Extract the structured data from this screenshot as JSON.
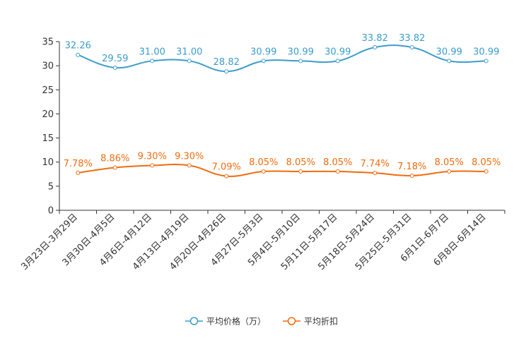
{
  "chart_data": {
    "type": "line",
    "title": "",
    "xlabel": "",
    "ylabel": "",
    "ylim": [
      0,
      35
    ],
    "yticks": [
      0,
      5,
      10,
      15,
      20,
      25,
      30,
      35
    ],
    "grid": false,
    "legend_position": "bottom",
    "categories": [
      "3月23日-3月29日",
      "3月30日-4月5日",
      "4月6日-4月12日",
      "4月13日-4月19日",
      "4月20日-4月26日",
      "4月27日-5月3日",
      "5月4日-5月10日",
      "5月11日-5月17日",
      "5月18日-5月24日",
      "5月25日-5月31日",
      "6月1日-6月7日",
      "6月8日-6月14日"
    ],
    "series": [
      {
        "name": "平均价格（万）",
        "color": "#3b9ccc",
        "values": [
          32.26,
          29.59,
          31.0,
          31.0,
          28.82,
          30.99,
          30.99,
          30.99,
          33.82,
          33.82,
          30.99,
          30.99
        ],
        "labels": [
          "32.26",
          "29.59",
          "31.00",
          "31.00",
          "28.82",
          "30.99",
          "30.99",
          "30.99",
          "33.82",
          "33.82",
          "30.99",
          "30.99"
        ]
      },
      {
        "name": "平均折扣",
        "color": "#f06c0f",
        "values": [
          7.78,
          8.86,
          9.3,
          9.3,
          7.09,
          8.05,
          8.05,
          8.05,
          7.74,
          7.18,
          8.05,
          8.05
        ],
        "labels": [
          "7.78%",
          "8.86%",
          "9.30%",
          "9.30%",
          "7.09%",
          "8.05%",
          "8.05%",
          "8.05%",
          "7.74%",
          "7.18%",
          "8.05%",
          "8.05%"
        ]
      }
    ]
  }
}
